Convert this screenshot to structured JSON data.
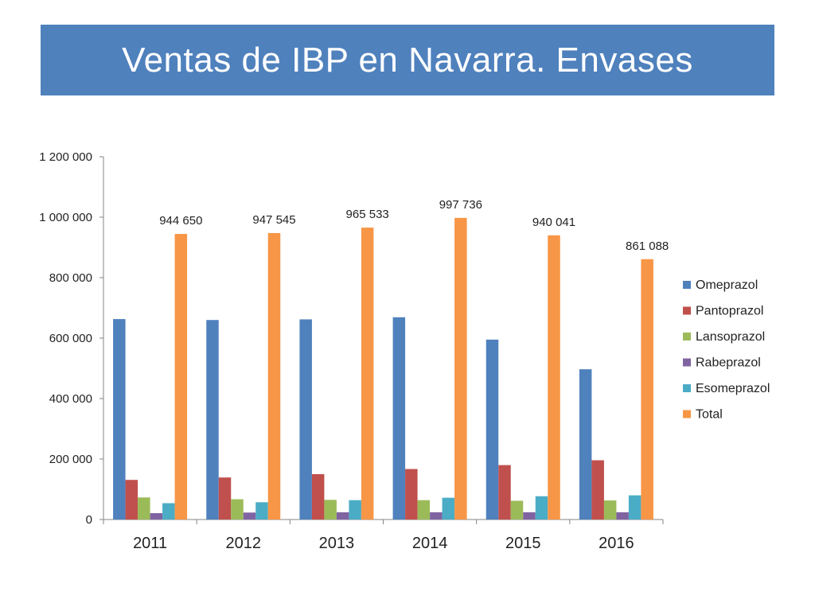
{
  "title": "Ventas de IBP en Navarra. Envases",
  "chart_data": {
    "type": "bar",
    "categories": [
      "2011",
      "2012",
      "2013",
      "2014",
      "2015",
      "2016"
    ],
    "series": [
      {
        "name": "Omeprazol",
        "color": "#4f81bd",
        "values": [
          663000,
          660000,
          662000,
          669000,
          595000,
          497000
        ]
      },
      {
        "name": "Pantoprazol",
        "color": "#c0504d",
        "values": [
          131000,
          139000,
          150000,
          167000,
          180000,
          196000
        ]
      },
      {
        "name": "Lansoprazol",
        "color": "#9bbb59",
        "values": [
          73000,
          67000,
          65000,
          64000,
          62000,
          63000
        ]
      },
      {
        "name": "Rabeprazol",
        "color": "#8064a2",
        "values": [
          21000,
          23000,
          24000,
          24000,
          24000,
          24000
        ]
      },
      {
        "name": "Esomeprazol",
        "color": "#4bacc6",
        "values": [
          54000,
          57000,
          64000,
          72000,
          77000,
          80000
        ]
      },
      {
        "name": "Total",
        "color": "#f79646",
        "values": [
          944650,
          947545,
          965533,
          997736,
          940041,
          861088
        ]
      }
    ],
    "data_labels": {
      "series": "Total",
      "labels": [
        "944 650",
        "947 545",
        "965 533",
        "997 736",
        "940 041",
        "861 088"
      ]
    },
    "y_ticks": [
      {
        "value": 0,
        "label": "0"
      },
      {
        "value": 200000,
        "label": "200 000"
      },
      {
        "value": 400000,
        "label": "400 000"
      },
      {
        "value": 600000,
        "label": "600 000"
      },
      {
        "value": 800000,
        "label": "800 000"
      },
      {
        "value": 1000000,
        "label": "1 000 000"
      },
      {
        "value": 1200000,
        "label": "1 200 000"
      }
    ],
    "ylim": [
      0,
      1200000
    ],
    "grid": false,
    "legend": "right"
  }
}
